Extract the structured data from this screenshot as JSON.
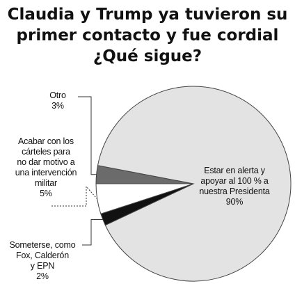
{
  "title": {
    "line1": "Claudia y Trump ya tuvieron su",
    "line2": "primer contacto y fue cordial",
    "line3": "¿Qué sigue?"
  },
  "colors": {
    "estar_alerta": "#e3e3e3",
    "otro": "#6b6b6b",
    "acabar_carteles": "#ffffff",
    "someterse": "#111111",
    "stroke": "#444444"
  },
  "chart_data": {
    "type": "pie",
    "start_angle_deg": 180,
    "direction": "clockwise",
    "slices": [
      {
        "key": "otro",
        "value": 3,
        "label_lines": [
          "Otro",
          "3%"
        ]
      },
      {
        "key": "estar_alerta",
        "value": 90,
        "label_lines": [
          "Estar en alerta y",
          "apoyar al 100 % a",
          "nuestra Presidenta",
          "90%"
        ]
      },
      {
        "key": "someterse",
        "value": 2,
        "label_lines": [
          "Someterse, como",
          "Fox, Calderón",
          "y EPN",
          "2%"
        ]
      },
      {
        "key": "acabar_carteles",
        "value": 5,
        "label_lines": [
          "Acabar con los",
          "cárteles para",
          "no dar motivo a",
          "una intervención",
          "militar",
          "5%"
        ]
      }
    ]
  }
}
